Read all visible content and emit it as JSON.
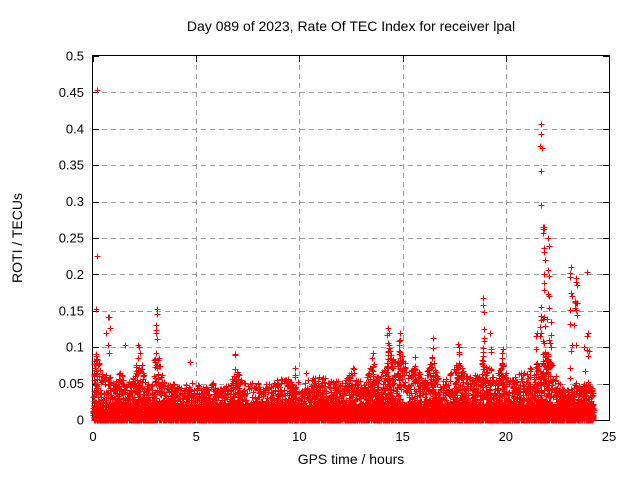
{
  "chart_data": {
    "type": "scatter",
    "title": "Day 089 of 2023, Rate Of TEC Index for receiver lpal",
    "xlabel": "GPS time / hours",
    "ylabel": "ROTI / TECUs",
    "xlim": [
      0,
      25
    ],
    "ylim": [
      0,
      0.5
    ],
    "xticks": [
      "0",
      "5",
      "10",
      "15",
      "20",
      "25"
    ],
    "yticks": [
      "0",
      "0.05",
      "0.1",
      "0.15",
      "0.2",
      "0.25",
      "0.3",
      "0.35",
      "0.4",
      "0.45",
      "0.5"
    ],
    "grid": "dashed gray at major ticks, ticks mirrored on all four borders",
    "legend": "none",
    "marker": "plus",
    "marker_color": "#ff0000",
    "grid_color": "#999999",
    "border_color": "#000000",
    "description": "Dense band of ROTI values mostly below 0.05 TECU across 0-24.25 h, with intermittent spike clusters; strongest activity cluster near 21.7-22.1 h reaching 0.407.",
    "envelope": [
      [
        0.0,
        0.08
      ],
      [
        0.25,
        0.09
      ],
      [
        0.45,
        0.06
      ],
      [
        0.7,
        0.065
      ],
      [
        1.0,
        0.05
      ],
      [
        1.3,
        0.07
      ],
      [
        1.6,
        0.052
      ],
      [
        1.9,
        0.055
      ],
      [
        2.1,
        0.08
      ],
      [
        2.25,
        0.1
      ],
      [
        2.5,
        0.055
      ],
      [
        2.8,
        0.05
      ],
      [
        3.0,
        0.09
      ],
      [
        3.1,
        0.12
      ],
      [
        3.3,
        0.065
      ],
      [
        3.6,
        0.05
      ],
      [
        3.9,
        0.052
      ],
      [
        4.2,
        0.045
      ],
      [
        4.5,
        0.05
      ],
      [
        4.8,
        0.055
      ],
      [
        5.1,
        0.05
      ],
      [
        5.4,
        0.045
      ],
      [
        5.7,
        0.052
      ],
      [
        6.0,
        0.048
      ],
      [
        6.3,
        0.045
      ],
      [
        6.6,
        0.05
      ],
      [
        6.9,
        0.075
      ],
      [
        7.2,
        0.055
      ],
      [
        7.5,
        0.05
      ],
      [
        7.8,
        0.058
      ],
      [
        8.1,
        0.048
      ],
      [
        8.4,
        0.052
      ],
      [
        8.7,
        0.05
      ],
      [
        9.0,
        0.058
      ],
      [
        9.3,
        0.062
      ],
      [
        9.6,
        0.052
      ],
      [
        9.9,
        0.062
      ],
      [
        10.2,
        0.052
      ],
      [
        10.5,
        0.058
      ],
      [
        10.8,
        0.06
      ],
      [
        11.1,
        0.062
      ],
      [
        11.4,
        0.052
      ],
      [
        11.7,
        0.058
      ],
      [
        12.0,
        0.054
      ],
      [
        12.3,
        0.06
      ],
      [
        12.6,
        0.068
      ],
      [
        12.9,
        0.054
      ],
      [
        13.2,
        0.058
      ],
      [
        13.5,
        0.078
      ],
      [
        13.8,
        0.06
      ],
      [
        14.1,
        0.07
      ],
      [
        14.35,
        0.1
      ],
      [
        14.6,
        0.08
      ],
      [
        14.9,
        0.095
      ],
      [
        15.2,
        0.07
      ],
      [
        15.5,
        0.08
      ],
      [
        15.8,
        0.065
      ],
      [
        16.1,
        0.06
      ],
      [
        16.45,
        0.09
      ],
      [
        16.75,
        0.06
      ],
      [
        17.05,
        0.055
      ],
      [
        17.35,
        0.065
      ],
      [
        17.7,
        0.085
      ],
      [
        18.0,
        0.062
      ],
      [
        18.3,
        0.06
      ],
      [
        18.6,
        0.065
      ],
      [
        18.9,
        0.09
      ],
      [
        19.2,
        0.065
      ],
      [
        19.5,
        0.058
      ],
      [
        19.85,
        0.08
      ],
      [
        20.15,
        0.055
      ],
      [
        20.45,
        0.06
      ],
      [
        20.75,
        0.065
      ],
      [
        21.05,
        0.07
      ],
      [
        21.35,
        0.075
      ],
      [
        21.65,
        0.085
      ],
      [
        21.9,
        0.095
      ],
      [
        22.2,
        0.08
      ],
      [
        22.5,
        0.058
      ],
      [
        22.8,
        0.042
      ],
      [
        23.1,
        0.048
      ],
      [
        23.4,
        0.052
      ],
      [
        23.7,
        0.042
      ],
      [
        24.0,
        0.055
      ],
      [
        24.25,
        0.04
      ]
    ],
    "spikes": [
      {
        "x": 0.15,
        "ymax": 0.091,
        "n": 14
      },
      {
        "x": 0.75,
        "ymax": 0.142,
        "n": 5
      },
      {
        "x": 2.2,
        "ymax": 0.103,
        "n": 9
      },
      {
        "x": 3.1,
        "ymax": 0.153,
        "n": 12
      },
      {
        "x": 6.9,
        "ymax": 0.091,
        "n": 8
      },
      {
        "x": 9.8,
        "ymax": 0.072,
        "n": 5
      },
      {
        "x": 12.6,
        "ymax": 0.072,
        "n": 6
      },
      {
        "x": 13.55,
        "ymax": 0.092,
        "n": 8
      },
      {
        "x": 14.3,
        "ymax": 0.127,
        "n": 14
      },
      {
        "x": 14.85,
        "ymax": 0.12,
        "n": 12
      },
      {
        "x": 15.6,
        "ymax": 0.086,
        "n": 7
      },
      {
        "x": 16.45,
        "ymax": 0.112,
        "n": 10
      },
      {
        "x": 17.7,
        "ymax": 0.105,
        "n": 10
      },
      {
        "x": 18.9,
        "ymax": 0.168,
        "n": 14
      },
      {
        "x": 19.25,
        "ymax": 0.12,
        "n": 7
      },
      {
        "x": 19.85,
        "ymax": 0.097,
        "n": 8
      },
      {
        "x": 21.5,
        "ymax": 0.12,
        "n": 8
      },
      {
        "x": 21.7,
        "ymax": 0.155,
        "n": 10
      },
      {
        "x": 21.85,
        "ymax": 0.265,
        "n": 24
      },
      {
        "x": 22.05,
        "ymax": 0.25,
        "n": 14
      },
      {
        "x": 22.2,
        "ymax": 0.135,
        "n": 8
      },
      {
        "x": 23.15,
        "ymax": 0.21,
        "n": 12
      },
      {
        "x": 23.4,
        "ymax": 0.195,
        "n": 8
      },
      {
        "x": 23.8,
        "ymax": 0.1,
        "n": 6
      },
      {
        "x": 24.0,
        "ymax": 0.12,
        "n": 5
      }
    ],
    "outliers": [
      [
        0.19,
        0.453
      ],
      [
        0.19,
        0.225
      ],
      [
        0.16,
        0.153
      ],
      [
        0.65,
        0.12
      ],
      [
        0.78,
        0.142
      ],
      [
        0.82,
        0.127
      ],
      [
        1.55,
        0.103
      ],
      [
        4.7,
        0.079
      ],
      [
        10.3,
        0.064
      ],
      [
        21.7,
        0.407
      ],
      [
        21.7,
        0.393
      ],
      [
        21.65,
        0.376
      ],
      [
        21.75,
        0.373
      ],
      [
        21.7,
        0.342
      ],
      [
        21.7,
        0.295
      ],
      [
        23.95,
        0.203
      ],
      [
        23.95,
        0.115
      ],
      [
        23.4,
        0.19
      ],
      [
        23.45,
        0.185
      ],
      [
        23.35,
        0.163
      ],
      [
        23.3,
        0.13
      ]
    ],
    "generation": {
      "seed": 20230089,
      "x_end": 24.25,
      "baseline_points": 6500,
      "falloff": 2.3,
      "floor_points": 2500,
      "floor_max": 0.022
    }
  }
}
